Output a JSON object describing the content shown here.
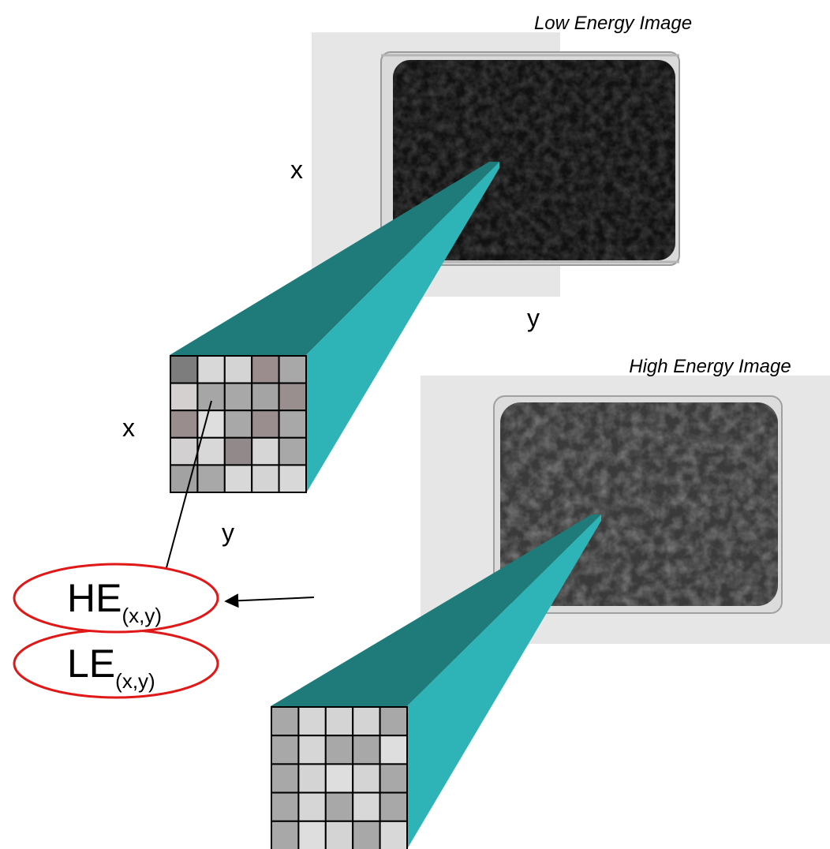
{
  "low_image": {
    "title": "Low Energy Image",
    "x_label": "x",
    "y_label": "y"
  },
  "high_image": {
    "title": "High Energy Image"
  },
  "grid_low": {
    "x_label": "x",
    "y_label": "y",
    "cells": [
      [
        "#7d7d7d",
        "#d8d8d8",
        "#d4d4d4",
        "#9b8d8d",
        "#a8a8a8"
      ],
      [
        "#d4d0d0",
        "#a6a6a6",
        "#a8a8a8",
        "#a4a4a4",
        "#9a8f8f"
      ],
      [
        "#9a8d8d",
        "#dedede",
        "#a8a8a8",
        "#9b8e8e",
        "#a8a8a8"
      ],
      [
        "#d2d0d0",
        "#d8d8d8",
        "#928a8a",
        "#d6d6d6",
        "#a8a8a8"
      ],
      [
        "#a2a2a2",
        "#a8a8a8",
        "#d8d8d8",
        "#d4d4d4",
        "#d8d8d8"
      ]
    ]
  },
  "grid_high": {
    "cells": [
      [
        "#a8a8a8",
        "#d6d6d6",
        "#d4d4d4",
        "#d4d4d4",
        "#a8a8a8"
      ],
      [
        "#a8a8a8",
        "#d6d6d6",
        "#a8a8a8",
        "#a8a8a8",
        "#dedede"
      ],
      [
        "#a8a8a8",
        "#d4d4d4",
        "#dedede",
        "#d4d4d4",
        "#a8a8a8"
      ],
      [
        "#a8a8a8",
        "#d6d6d6",
        "#a8a8a8",
        "#d8d8d8",
        "#a8a8a8"
      ],
      [
        "#a8a8a8",
        "#dedede",
        "#d4d4d4",
        "#a8a8a8",
        "#d8d8d8"
      ]
    ]
  },
  "le_label": {
    "main": "LE",
    "sub": "(x,y)"
  },
  "he_label": {
    "main": "HE",
    "sub": "(x,y)"
  },
  "colors": {
    "teal_dark": "#1f7b79",
    "teal_light": "#2eb4b6",
    "ellipse": "#e01818",
    "scan_bg": "#e6e6e6",
    "scan_dark": "#111111"
  }
}
